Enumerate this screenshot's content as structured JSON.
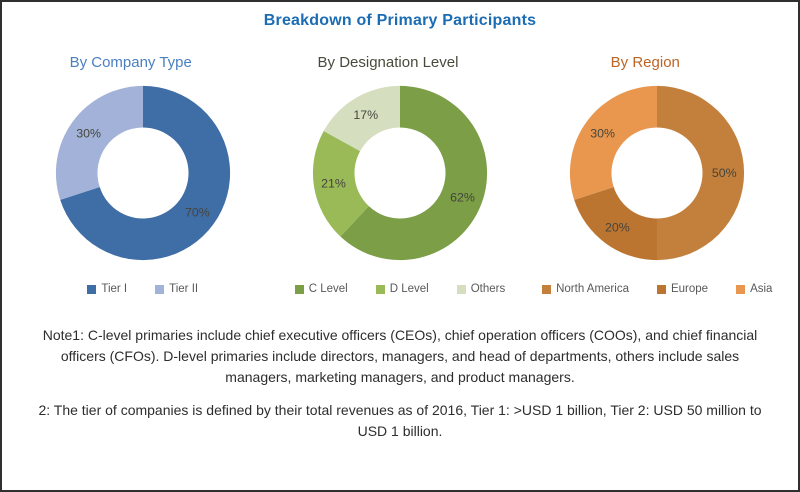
{
  "page": {
    "title": "Breakdown of Primary Participants",
    "title_color": "#1b6cb3"
  },
  "chart_data": [
    {
      "type": "pie",
      "subtype": "donut",
      "title": "By Company Type",
      "title_color": "#4a7fc1",
      "categories": [
        "Tier I",
        "Tier II"
      ],
      "values": [
        70,
        30
      ],
      "colors": [
        "#3f6da5",
        "#a3b2d8"
      ],
      "data_labels": [
        "70%",
        "30%"
      ],
      "legend_position": "bottom"
    },
    {
      "type": "pie",
      "subtype": "donut",
      "title": "By Designation Level",
      "title_color": "#4a4a3c",
      "categories": [
        "C Level",
        "D Level",
        "Others"
      ],
      "values": [
        62,
        21,
        17
      ],
      "colors": [
        "#7b9e47",
        "#9aba58",
        "#d5dfc0"
      ],
      "data_labels": [
        "62%",
        "21%",
        "17%"
      ],
      "legend_position": "bottom"
    },
    {
      "type": "pie",
      "subtype": "donut",
      "title": "By Region",
      "title_color": "#bc6524",
      "categories": [
        "North America",
        "Europe",
        "Asia"
      ],
      "values": [
        50,
        20,
        30
      ],
      "colors": [
        "#c3803c",
        "#bb7531",
        "#e9974e"
      ],
      "data_labels": [
        "50%",
        "20%",
        "30%"
      ],
      "legend_position": "bottom"
    }
  ],
  "notes": {
    "note1": "Note1: C-level primaries include chief executive officers (CEOs), chief operation officers (COOs), and chief financial officers (CFOs). D-level primaries include directors, managers, and head of departments, others include sales managers, marketing managers, and product managers.",
    "note2": "2: The tier of companies is defined by their total revenues as of 2016, Tier 1: >USD 1 billion, Tier 2: USD 50 million to USD 1 billion."
  }
}
